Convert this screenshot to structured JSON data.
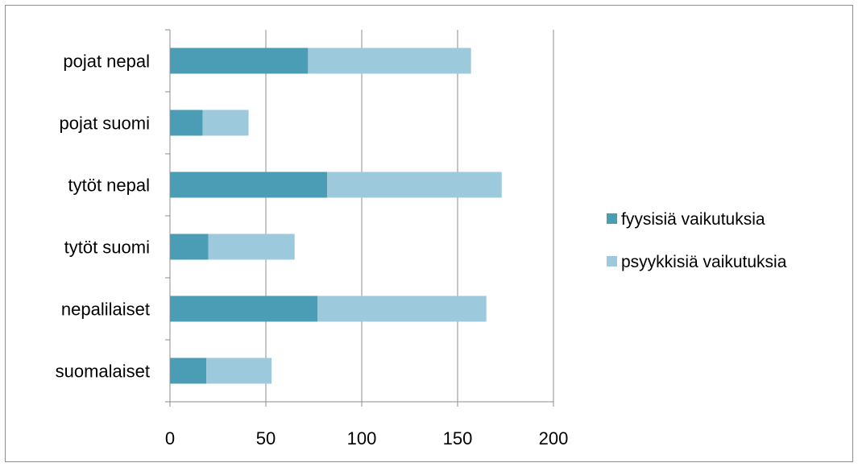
{
  "chart_data": {
    "type": "bar",
    "orientation": "horizontal",
    "stacked": true,
    "title": "",
    "xlabel": "",
    "ylabel": "",
    "categories": [
      "pojat nepal",
      "pojat suomi",
      "tytöt nepal",
      "tytöt suomi",
      "nepalilaiset",
      "suomalaiset"
    ],
    "series": [
      {
        "name": "fyysisiä vaikutuksia",
        "color": "#4a9db5",
        "values": [
          72,
          17,
          82,
          20,
          77,
          19
        ]
      },
      {
        "name": "psyykkisiä vaikutuksia",
        "color": "#9cc9dc",
        "values": [
          85,
          24,
          91,
          45,
          88,
          34
        ]
      }
    ],
    "xlim": [
      0,
      200
    ],
    "xticks": [
      "0",
      "50",
      "100",
      "150",
      "200"
    ],
    "grid": "vertical",
    "legend_position": "right"
  }
}
